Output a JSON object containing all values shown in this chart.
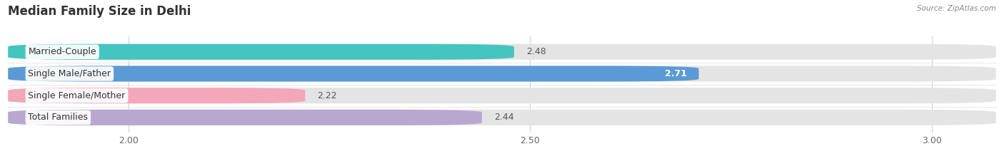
{
  "title": "Median Family Size in Delhi",
  "source": "Source: ZipAtlas.com",
  "categories": [
    "Married-Couple",
    "Single Male/Father",
    "Single Female/Mother",
    "Total Families"
  ],
  "values": [
    2.48,
    2.71,
    2.22,
    2.44
  ],
  "bar_colors": [
    "#45c5c0",
    "#5b9bd5",
    "#f4a7b9",
    "#b8a8d0"
  ],
  "label_colors": [
    "#444444",
    "#ffffff",
    "#444444",
    "#444444"
  ],
  "xmin": 1.85,
  "xmax": 3.08,
  "xticks": [
    2.0,
    2.5,
    3.0
  ],
  "background_color": "#f5f5f5",
  "bar_bg_color": "#e4e4e4",
  "title_fontsize": 12,
  "tick_fontsize": 9,
  "value_fontsize": 9,
  "label_fontsize": 9,
  "bar_height": 0.72,
  "bar_gap": 0.28
}
